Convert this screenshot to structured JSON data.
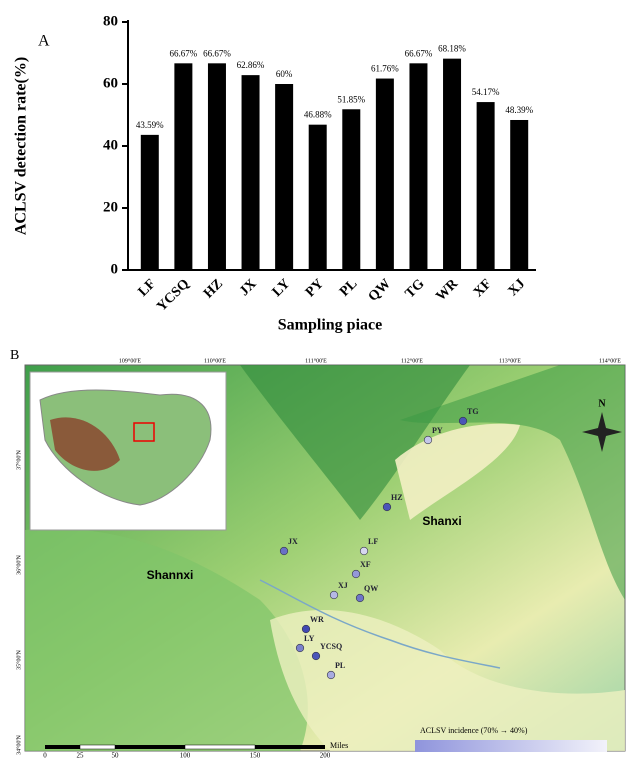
{
  "chart_data": {
    "type": "bar",
    "panel": "A",
    "ylabel": "ACLSV detection rate(%)",
    "xlabel": "Sampling piace",
    "categories": [
      "LF",
      "YCSQ",
      "HZ",
      "JX",
      "LY",
      "PY",
      "PL",
      "QW",
      "TG",
      "WR",
      "XF",
      "XJ"
    ],
    "values": [
      43.59,
      66.67,
      66.67,
      62.86,
      60,
      46.88,
      51.85,
      61.76,
      66.67,
      68.18,
      54.17,
      48.39
    ],
    "value_labels": [
      "43.59%",
      "66.67%",
      "66.67%",
      "62.86%",
      "60%",
      "46.88%",
      "51.85%",
      "61.76%",
      "66.67%",
      "68.18%",
      "54.17%",
      "48.39%"
    ],
    "color": "#000000",
    "ylim": [
      0,
      80
    ],
    "yticks": [
      0,
      20,
      40,
      60,
      80
    ]
  },
  "map": {
    "panel": "B",
    "lon_labels": [
      "109°00'E",
      "110°00'E",
      "111°00'E",
      "112°00'E",
      "113°00'E",
      "114°00'E"
    ],
    "lat_labels": [
      "37°00'N",
      "36°00'N",
      "35°00'N",
      "34°00'N"
    ],
    "regions": [
      "Shannxi",
      "Shanxi"
    ],
    "north": "N",
    "sites": [
      "TG",
      "PY",
      "HZ",
      "JX",
      "LF",
      "XF",
      "XJ",
      "QW",
      "WR",
      "LY",
      "YCSQ",
      "PL"
    ],
    "legend": "ACLSV incidence (70% → 40%)",
    "scale_labels": [
      "0",
      "25",
      "50",
      "100",
      "150",
      "200"
    ],
    "scale_unit": "Miles"
  }
}
